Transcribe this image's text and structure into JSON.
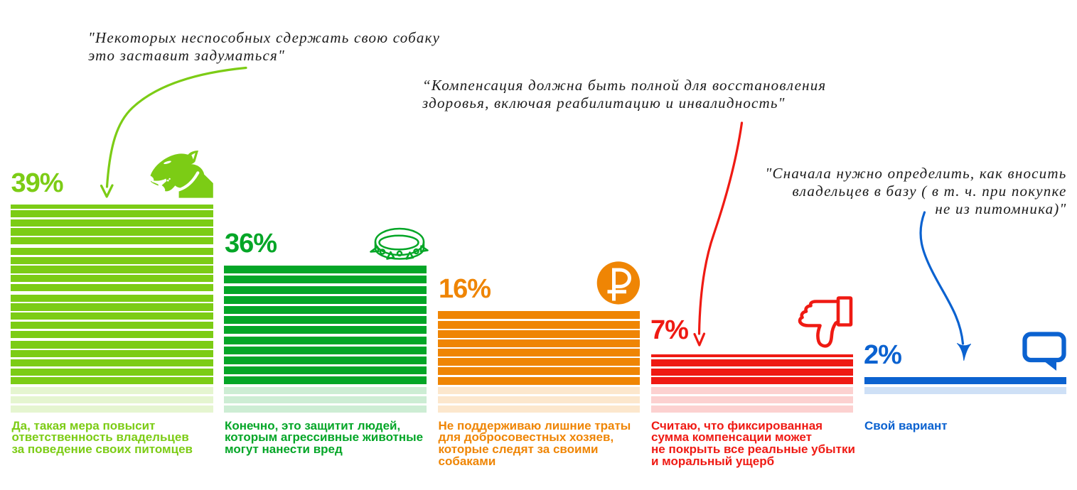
{
  "chart_data": {
    "type": "bar",
    "title": "",
    "unit": "%",
    "categories": [
      "Да, такая мера повысит ответственность владельцев за поведение своих питомцев",
      "Конечно, это защитит людей, которым агрессивные животные могут нанести вред",
      "Не поддерживаю лишние траты для добросовестных хозяев, которые следят за своими собаками",
      "Считаю, что фиксированная сумма компенсации может не покрыть все реальные убытки и моральный ущерб",
      "Свой вариант"
    ],
    "values": [
      39,
      36,
      16,
      7,
      2
    ],
    "value_labels": [
      "39%",
      "36%",
      "16%",
      "7%",
      "2%"
    ],
    "colors": [
      "#7CCC15",
      "#04A627",
      "#EF8504",
      "#EF1A13",
      "#0B62D0"
    ],
    "xlabel": "",
    "ylabel": "",
    "legend": false,
    "grid": false,
    "annotations": [
      "\"Некоторых неспособных сдержать свою собаку это заставит задуматься\"",
      "“Компенсация должна быть полной для восстановления здоровья, включая реабилитацию и инвалидность\"",
      "\"Сначала нужно определить, как вносить владельцев в базу ( в т. ч. при покупке не из питомника)\""
    ]
  },
  "bars": [
    {
      "id": "yes-responsibility",
      "percent_label": "39%",
      "value": 39,
      "color": "#7CCC15",
      "icon": "bull-terrier-icon",
      "label_lines": [
        "Да, такая мера повысит",
        "ответственность владельцев",
        "за поведение своих питомцев"
      ]
    },
    {
      "id": "protect-people",
      "percent_label": "36%",
      "value": 36,
      "color": "#04A627",
      "icon": "dog-collar-icon",
      "label_lines": [
        "Конечно, это защитит людей,",
        "которым агрессивные животные",
        "могут нанести вред"
      ]
    },
    {
      "id": "no-extra-costs",
      "percent_label": "16%",
      "value": 16,
      "color": "#EF8504",
      "icon": "ruble-icon",
      "label_lines": [
        "Не поддерживаю лишние траты",
        "для добросовестных хозяев,",
        "которые следят за своими",
        "собаками"
      ]
    },
    {
      "id": "fixed-compensation-doubt",
      "percent_label": "7%",
      "value": 7,
      "color": "#EF1A13",
      "icon": "thumbs-down-icon",
      "label_lines": [
        "Считаю, что фиксированная",
        "сумма компенсации может",
        "не покрыть все реальные убытки",
        "и моральный ущерб"
      ]
    },
    {
      "id": "own-option",
      "percent_label": "2%",
      "value": 2,
      "color": "#0B62D0",
      "icon": "speech-bubble-icon",
      "label_lines": [
        "Свой вариант"
      ]
    }
  ],
  "quotes": [
    {
      "lines": [
        "\"Некоторых неспособных сдержать свою собаку",
        "это заставит задуматься\""
      ],
      "color": "#1b1b1b",
      "arrow_color": "#7CCC15"
    },
    {
      "lines": [
        "“Компенсация должна быть полной для восстановления",
        "здоровья, включая реабилитацию и инвалидность\""
      ],
      "color": "#1b1b1b",
      "arrow_color": "#EF1A13"
    },
    {
      "lines": [
        "\"Сначала нужно определить, как вносить",
        "владельцев в базу ( в т. ч. при покупке",
        "не из питомника)\""
      ],
      "color": "#1b1b1b",
      "arrow_color": "#0B62D0"
    }
  ]
}
